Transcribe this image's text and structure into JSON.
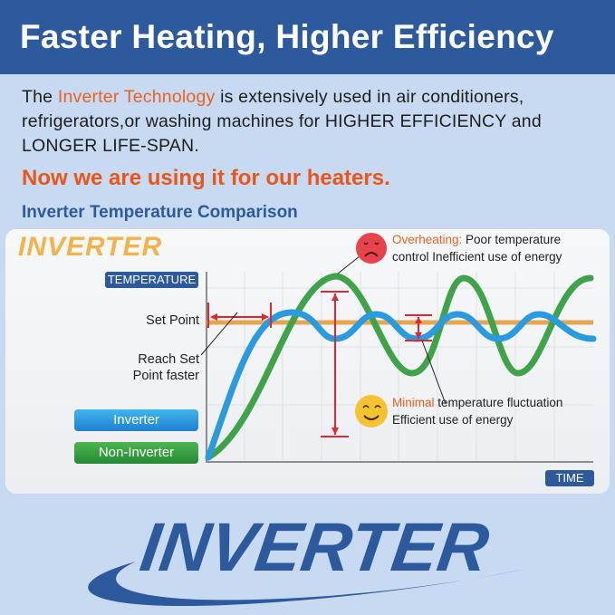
{
  "header": {
    "title": "Faster Heating, Higher Efficiency"
  },
  "intro": {
    "prefix": "The ",
    "highlight": "Inverter Technology",
    "suffix": " is extensively used in air conditioners, refrigerators,or washing machines for HIGHER EFFICIENCY and LONGER LIFE-SPAN."
  },
  "tagline": "Now we are using it for our heaters.",
  "comparison_title": "Inverter Temperature Comparison",
  "diagram": {
    "logo_text": "INVERTER",
    "y_axis_label": "TEMPERATURE",
    "x_axis_label": "TIME",
    "set_point_label": "Set Point",
    "reach_label_1": "Reach Set",
    "reach_label_2": "Point faster",
    "legend": [
      {
        "label": "Inverter",
        "color": "#2a9be0"
      },
      {
        "label": "Non-Inverter",
        "color": "#3fa34a"
      }
    ],
    "overheating": {
      "highlight": "Overheating:",
      "text1": " Poor temperature",
      "text2": "control Inefficient use of energy",
      "icon": "sad-face-icon"
    },
    "minimal": {
      "highlight": "Minimal",
      "text1": " temperature fluctuation",
      "text2": "Efficient use of energy",
      "icon": "smiley-face-icon"
    },
    "colors": {
      "set_point": "#e6a650",
      "arrows": "#e2262e",
      "inverter": "#2a9be0",
      "non_inverter": "#3fa34a"
    }
  },
  "brand": {
    "logo_text": "INVERTER"
  }
}
